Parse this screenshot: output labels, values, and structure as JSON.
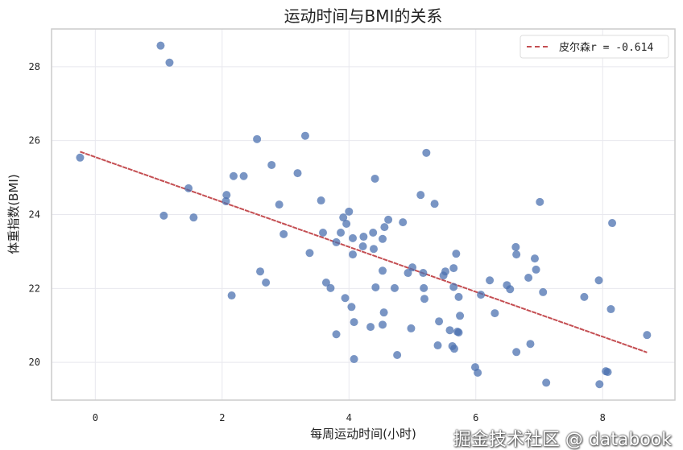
{
  "chart_data": {
    "type": "scatter",
    "title": "运动时间与BMI的关系",
    "xlabel": "每周运动时间(小时)",
    "ylabel": "体重指数(BMI)",
    "xlim": [
      -0.69,
      9.14
    ],
    "ylim": [
      18.98,
      29.02
    ],
    "xticks": [
      0,
      2,
      4,
      6,
      8
    ],
    "yticks": [
      20,
      22,
      24,
      26,
      28
    ],
    "grid": true,
    "legend_position": "top-right",
    "colors": {
      "points": "#4c72b0",
      "trend": "#c44e52"
    },
    "points": [
      [
        -0.24,
        25.54
      ],
      [
        1.03,
        28.57
      ],
      [
        1.17,
        28.11
      ],
      [
        1.47,
        24.71
      ],
      [
        1.08,
        23.97
      ],
      [
        1.55,
        23.92
      ],
      [
        2.07,
        24.53
      ],
      [
        2.18,
        25.04
      ],
      [
        2.34,
        25.04
      ],
      [
        2.06,
        24.36
      ],
      [
        2.55,
        26.04
      ],
      [
        2.78,
        25.34
      ],
      [
        2.9,
        24.27
      ],
      [
        2.97,
        23.47
      ],
      [
        3.31,
        26.13
      ],
      [
        3.19,
        25.12
      ],
      [
        3.56,
        24.38
      ],
      [
        4.0,
        24.08
      ],
      [
        3.91,
        23.92
      ],
      [
        3.96,
        23.75
      ],
      [
        3.59,
        23.51
      ],
      [
        3.87,
        23.51
      ],
      [
        4.06,
        23.36
      ],
      [
        4.23,
        23.4
      ],
      [
        3.8,
        23.25
      ],
      [
        4.22,
        23.14
      ],
      [
        4.06,
        22.92
      ],
      [
        3.38,
        22.96
      ],
      [
        2.6,
        22.46
      ],
      [
        2.69,
        22.16
      ],
      [
        3.64,
        22.16
      ],
      [
        3.71,
        22.01
      ],
      [
        2.15,
        21.81
      ],
      [
        3.94,
        21.74
      ],
      [
        4.04,
        21.5
      ],
      [
        4.08,
        21.09
      ],
      [
        4.34,
        20.96
      ],
      [
        3.8,
        20.76
      ],
      [
        4.08,
        20.09
      ],
      [
        5.22,
        25.67
      ],
      [
        4.41,
        24.97
      ],
      [
        5.13,
        24.53
      ],
      [
        5.35,
        24.29
      ],
      [
        7.01,
        24.34
      ],
      [
        4.62,
        23.86
      ],
      [
        4.85,
        23.79
      ],
      [
        8.15,
        23.77
      ],
      [
        4.38,
        23.51
      ],
      [
        4.56,
        23.66
      ],
      [
        4.53,
        23.34
      ],
      [
        4.39,
        23.07
      ],
      [
        4.53,
        22.48
      ],
      [
        4.42,
        22.03
      ],
      [
        4.72,
        22.01
      ],
      [
        5.0,
        22.57
      ],
      [
        4.93,
        22.42
      ],
      [
        5.17,
        22.42
      ],
      [
        5.18,
        22.01
      ],
      [
        5.19,
        21.72
      ],
      [
        5.49,
        22.35
      ],
      [
        5.52,
        22.46
      ],
      [
        5.65,
        22.55
      ],
      [
        5.69,
        22.94
      ],
      [
        5.65,
        22.04
      ],
      [
        5.73,
        21.77
      ],
      [
        5.75,
        21.26
      ],
      [
        4.55,
        21.35
      ],
      [
        4.53,
        21.02
      ],
      [
        4.98,
        20.92
      ],
      [
        5.42,
        21.11
      ],
      [
        5.59,
        20.87
      ],
      [
        5.71,
        20.83
      ],
      [
        5.73,
        20.81
      ],
      [
        5.4,
        20.46
      ],
      [
        5.63,
        20.44
      ],
      [
        5.66,
        20.37
      ],
      [
        4.76,
        20.2
      ],
      [
        5.99,
        19.87
      ],
      [
        6.03,
        19.72
      ],
      [
        6.08,
        21.83
      ],
      [
        6.22,
        22.22
      ],
      [
        6.3,
        21.33
      ],
      [
        6.49,
        22.09
      ],
      [
        6.54,
        21.98
      ],
      [
        6.63,
        23.12
      ],
      [
        6.64,
        22.92
      ],
      [
        6.64,
        20.28
      ],
      [
        6.86,
        20.5
      ],
      [
        6.83,
        22.29
      ],
      [
        6.93,
        22.81
      ],
      [
        6.95,
        22.51
      ],
      [
        7.06,
        21.9
      ],
      [
        7.11,
        19.45
      ],
      [
        7.71,
        21.77
      ],
      [
        7.94,
        22.22
      ],
      [
        8.13,
        21.44
      ],
      [
        7.95,
        19.41
      ],
      [
        8.05,
        19.76
      ],
      [
        8.08,
        19.74
      ],
      [
        8.7,
        20.74
      ]
    ],
    "trendline": {
      "x": [
        -0.24,
        8.7
      ],
      "y": [
        25.7,
        20.27
      ]
    },
    "legend": [
      {
        "label": "皮尔森r = -0.614",
        "style": "dashed"
      }
    ]
  },
  "watermark": "掘金技术社区 @ databook"
}
